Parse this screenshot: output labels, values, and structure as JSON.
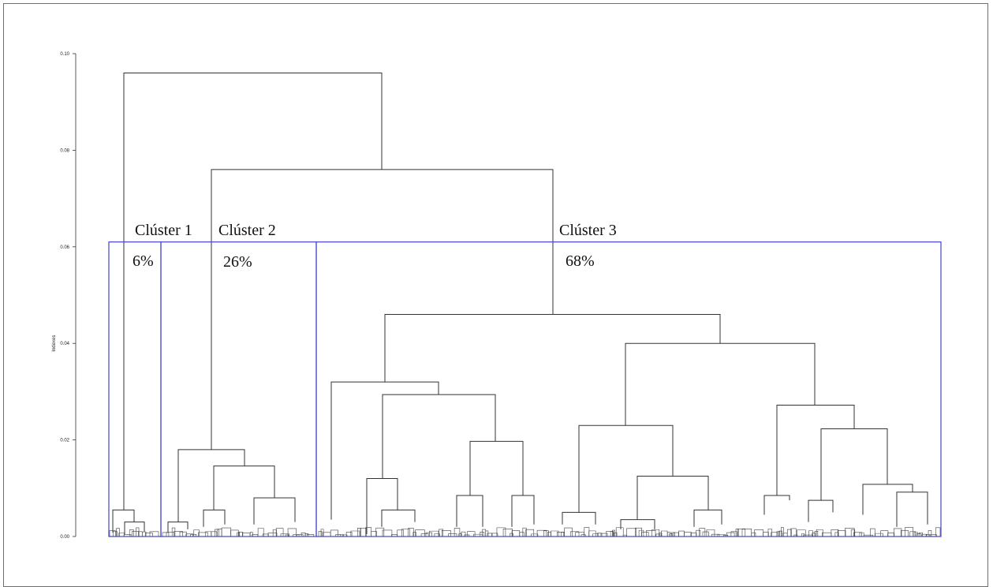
{
  "chart_data": {
    "type": "dendrogram",
    "ylabel": "Indexes",
    "ylim": [
      0,
      0.1
    ],
    "yticks": [
      "0.00",
      "0.02",
      "0.04",
      "0.06",
      "0.08",
      "0.10"
    ],
    "ytick_values": [
      0,
      0.02,
      0.04,
      0.06,
      0.08,
      0.1
    ],
    "merge_heights": {
      "root": 0.096,
      "cluster2_vs_cluster3": 0.076,
      "cluster3_top": 0.046,
      "cluster3_left_branch": 0.032,
      "cluster3_right_branch": 0.04,
      "cluster2_top": 0.018,
      "cluster1_top": 0.0055
    },
    "cut_height": 0.061,
    "clusters": [
      {
        "name": "Clúster 1",
        "percent": "6%"
      },
      {
        "name": "Clúster 2",
        "percent": "26%"
      },
      {
        "name": "Clúster 3",
        "percent": "68%"
      }
    ],
    "colors": {
      "tree": "#333333",
      "cluster_box": "#4444cc"
    }
  }
}
